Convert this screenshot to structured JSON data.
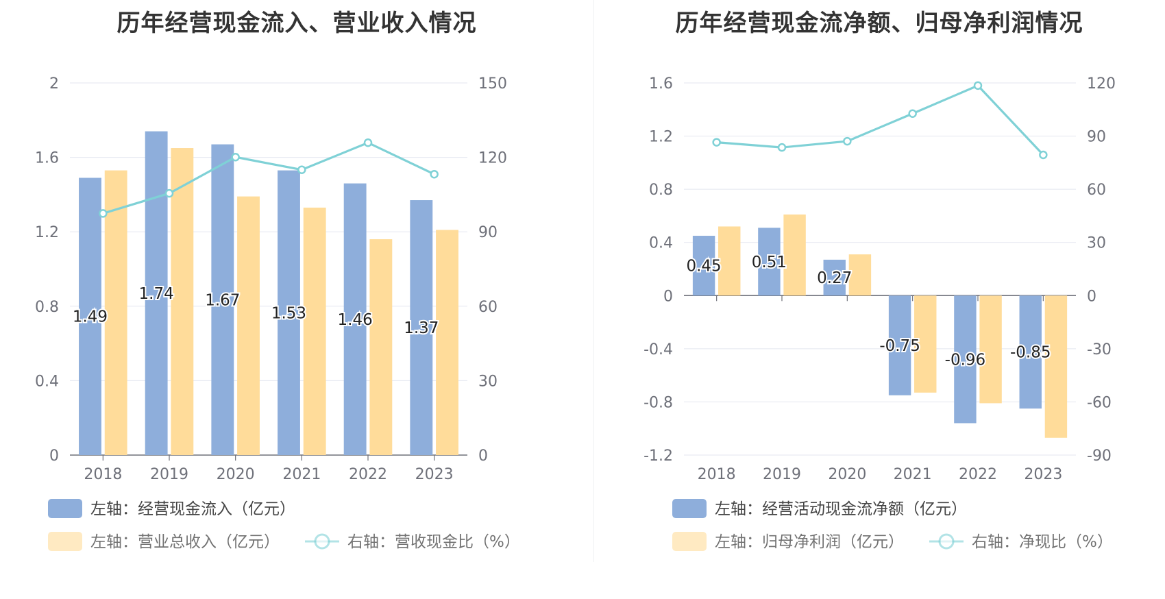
{
  "colors": {
    "bar_primary": "#8eaedb",
    "bar_secondary": "#ffdc9a",
    "line": "#7fd1d6",
    "grid": "#e3e6ef",
    "axis": "#6e7079",
    "title": "#333333"
  },
  "chart_data": [
    {
      "type": "bar",
      "title": "历年经营现金流入、营业收入情况",
      "categories": [
        "2018",
        "2019",
        "2020",
        "2021",
        "2022",
        "2023"
      ],
      "left_axis": {
        "ticks": [
          "0",
          "0.4",
          "0.8",
          "1.2",
          "1.6",
          "2"
        ],
        "ylim": [
          0,
          2
        ]
      },
      "right_axis": {
        "ticks": [
          "0",
          "30",
          "60",
          "90",
          "120",
          "150"
        ],
        "ylim": [
          0,
          150
        ]
      },
      "series": [
        {
          "name": "左轴：经营现金流入（亿元）",
          "axis": "left",
          "kind": "bar",
          "color_key": "bar_primary",
          "values": [
            1.49,
            1.74,
            1.67,
            1.53,
            1.46,
            1.37
          ],
          "labels": [
            "1.49",
            "1.74",
            "1.67",
            "1.53",
            "1.46",
            "1.37"
          ]
        },
        {
          "name": "左轴：营业总收入（亿元）",
          "axis": "left",
          "kind": "bar",
          "color_key": "bar_secondary",
          "values": [
            1.53,
            1.65,
            1.39,
            1.33,
            1.16,
            1.21
          ]
        },
        {
          "name": "右轴：营收现金比（%）",
          "axis": "right",
          "kind": "line",
          "color_key": "line",
          "values": [
            97.4,
            105.5,
            120.1,
            115.0,
            125.9,
            113.2
          ]
        }
      ],
      "legend": {
        "placement": "bottom"
      }
    },
    {
      "type": "bar",
      "title": "历年经营现金流净额、归母净利润情况",
      "categories": [
        "2018",
        "2019",
        "2020",
        "2021",
        "2022",
        "2023"
      ],
      "left_axis": {
        "ticks": [
          "-1.2",
          "-0.8",
          "-0.4",
          "0",
          "0.4",
          "0.8",
          "1.2",
          "1.6"
        ],
        "ylim": [
          -1.2,
          1.6
        ]
      },
      "right_axis": {
        "ticks": [
          "-90",
          "-60",
          "-30",
          "0",
          "30",
          "60",
          "90",
          "120"
        ],
        "ylim": [
          -90,
          120
        ]
      },
      "series": [
        {
          "name": "左轴：经营活动现金流净额（亿元）",
          "axis": "left",
          "kind": "bar",
          "color_key": "bar_primary",
          "values": [
            0.45,
            0.51,
            0.27,
            -0.75,
            -0.96,
            -0.85
          ],
          "labels": [
            "0.45",
            "0.51",
            "0.27",
            "-0.75",
            "-0.96",
            "-0.85"
          ]
        },
        {
          "name": "左轴：归母净利润（亿元）",
          "axis": "left",
          "kind": "bar",
          "color_key": "bar_secondary",
          "values": [
            0.52,
            0.61,
            0.31,
            -0.73,
            -0.81,
            -1.07
          ]
        },
        {
          "name": "右轴：净现比（%）",
          "axis": "right",
          "kind": "line",
          "color_key": "line",
          "values": [
            86.5,
            83.6,
            87.1,
            102.7,
            118.5,
            79.4
          ]
        }
      ],
      "legend": {
        "placement": "bottom"
      }
    }
  ]
}
